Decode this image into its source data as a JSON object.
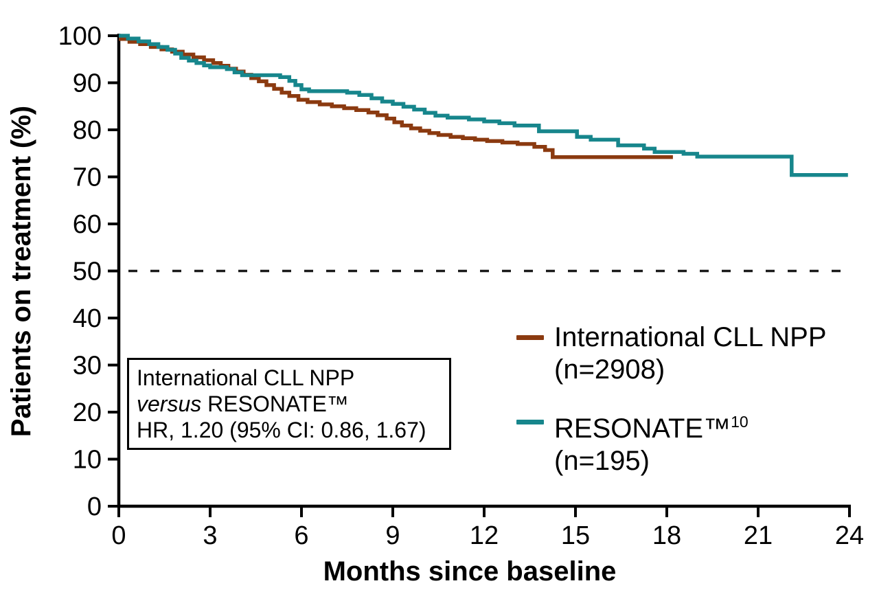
{
  "chart_data": {
    "type": "line",
    "subtype": "kaplan-meier-step",
    "title": "",
    "xlabel": "Months since baseline",
    "ylabel": "Patients on treatment (%)",
    "xlim": [
      0,
      24
    ],
    "ylim": [
      0,
      100
    ],
    "x_ticks": [
      0,
      3,
      6,
      9,
      12,
      15,
      18,
      21,
      24
    ],
    "y_ticks": [
      0,
      10,
      20,
      30,
      40,
      50,
      60,
      70,
      80,
      90,
      100
    ],
    "grid": false,
    "axis_color": "#000000",
    "reference_line": {
      "y": 50,
      "style": "dashed",
      "color": "#1a1a1a"
    },
    "legend_position": "lower-right-inside",
    "series": [
      {
        "name": "International CLL NPP (n=2908)",
        "color": "#8B3A10",
        "points": [
          [
            0,
            99.3
          ],
          [
            0.35,
            98.7
          ],
          [
            0.7,
            98.2
          ],
          [
            1.05,
            97.6
          ],
          [
            1.4,
            97.1
          ],
          [
            1.75,
            96.6
          ],
          [
            2.1,
            96.0
          ],
          [
            2.45,
            95.4
          ],
          [
            2.8,
            94.8
          ],
          [
            3.1,
            94.2
          ],
          [
            3.35,
            93.6
          ],
          [
            3.6,
            93.0
          ],
          [
            3.85,
            92.4
          ],
          [
            4.1,
            91.7
          ],
          [
            4.35,
            91.0
          ],
          [
            4.6,
            90.3
          ],
          [
            4.85,
            89.5
          ],
          [
            5.1,
            88.7
          ],
          [
            5.35,
            87.9
          ],
          [
            5.6,
            87.2
          ],
          [
            5.9,
            86.4
          ],
          [
            6.2,
            85.9
          ],
          [
            6.6,
            85.4
          ],
          [
            7.0,
            85.0
          ],
          [
            7.4,
            84.6
          ],
          [
            7.8,
            84.2
          ],
          [
            8.2,
            83.7
          ],
          [
            8.5,
            83.1
          ],
          [
            8.8,
            82.4
          ],
          [
            9.05,
            81.6
          ],
          [
            9.3,
            80.9
          ],
          [
            9.6,
            80.3
          ],
          [
            9.9,
            79.8
          ],
          [
            10.2,
            79.3
          ],
          [
            10.5,
            78.9
          ],
          [
            10.9,
            78.5
          ],
          [
            11.3,
            78.2
          ],
          [
            11.7,
            77.9
          ],
          [
            12.1,
            77.6
          ],
          [
            12.6,
            77.3
          ],
          [
            13.1,
            77.0
          ],
          [
            13.65,
            76.4
          ],
          [
            14.0,
            75.7
          ],
          [
            14.25,
            74.2
          ],
          [
            18.2,
            74.2
          ]
        ]
      },
      {
        "name": "RESONATE™ (n=195)",
        "color": "#17868C",
        "points": [
          [
            0,
            100
          ],
          [
            0.3,
            99.4
          ],
          [
            0.65,
            98.8
          ],
          [
            1.0,
            98.2
          ],
          [
            1.3,
            97.6
          ],
          [
            1.6,
            97.0
          ],
          [
            1.85,
            96.2
          ],
          [
            2.05,
            95.3
          ],
          [
            2.3,
            94.7
          ],
          [
            2.55,
            94.2
          ],
          [
            2.8,
            93.7
          ],
          [
            3.0,
            93.3
          ],
          [
            3.55,
            92.9
          ],
          [
            3.8,
            92.2
          ],
          [
            4.05,
            91.6
          ],
          [
            5.3,
            91.2
          ],
          [
            5.6,
            90.4
          ],
          [
            5.8,
            89.5
          ],
          [
            6.0,
            88.6
          ],
          [
            6.25,
            88.2
          ],
          [
            7.5,
            87.9
          ],
          [
            7.9,
            87.4
          ],
          [
            8.3,
            86.7
          ],
          [
            8.65,
            86.0
          ],
          [
            9.0,
            85.5
          ],
          [
            9.35,
            84.9
          ],
          [
            9.7,
            84.3
          ],
          [
            10.05,
            83.6
          ],
          [
            10.4,
            83.0
          ],
          [
            10.8,
            82.6
          ],
          [
            11.5,
            82.2
          ],
          [
            12.0,
            81.8
          ],
          [
            12.5,
            81.4
          ],
          [
            13.0,
            80.9
          ],
          [
            13.8,
            79.7
          ],
          [
            15.05,
            78.5
          ],
          [
            15.5,
            77.9
          ],
          [
            16.4,
            76.7
          ],
          [
            17.25,
            76.0
          ],
          [
            17.6,
            75.3
          ],
          [
            18.55,
            74.9
          ],
          [
            19.0,
            74.3
          ],
          [
            22.1,
            70.4
          ],
          [
            23.95,
            70.4
          ]
        ]
      }
    ]
  },
  "legend": {
    "entries": [
      {
        "line1": "International CLL NPP",
        "line2": "(n=2908)"
      },
      {
        "line1": "RESONATE™",
        "sup": "10",
        "line2": "(n=195)"
      }
    ]
  },
  "annotation": {
    "line1": "International CLL NPP",
    "line2_italic": "versus",
    "line2_rest": " RESONATE™",
    "line3": "HR, 1.20 (95% CI: 0.86, 1.67)"
  }
}
